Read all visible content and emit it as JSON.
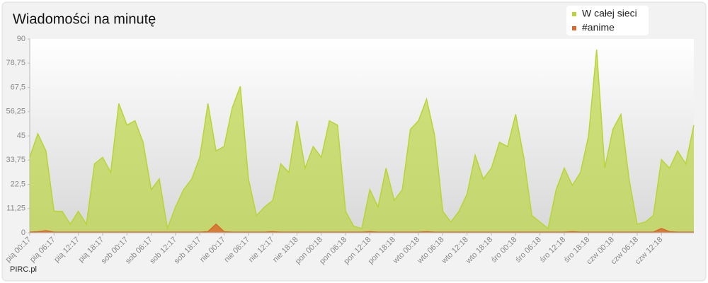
{
  "chart_data": {
    "type": "area",
    "title": "Wiadomości na minutę",
    "credit": "PIRC.pl",
    "legend": "top-right",
    "grid": false,
    "categories": [
      "pią 00:17",
      null,
      null,
      "pią 06:17",
      null,
      null,
      "pią 12:17",
      null,
      null,
      "pią 18:17",
      null,
      null,
      "sob 00:17",
      null,
      null,
      "sob 06:17",
      null,
      null,
      "sob 12:17",
      null,
      null,
      "sob 18:17",
      null,
      null,
      "nie 00:17",
      null,
      null,
      "nie 06:17",
      null,
      null,
      "nie 12:17",
      null,
      null,
      "nie 18:18",
      null,
      null,
      "pon 00:18",
      null,
      null,
      "pon 06:18",
      null,
      null,
      "pon 12:18",
      null,
      null,
      "pon 18:18",
      null,
      null,
      "wto 00:18",
      null,
      null,
      "wto 06:18",
      null,
      null,
      "wto 12:18",
      null,
      null,
      "wto 18:18",
      null,
      null,
      "śro 00:18",
      null,
      null,
      "śro 06:18",
      null,
      null,
      "śro 12:18",
      null,
      null,
      "śro 18:18",
      null,
      null,
      "czw 00:18",
      null,
      null,
      "czw 06:18",
      null,
      null,
      "czw 12:18",
      null,
      null,
      null,
      null
    ],
    "series": [
      {
        "name": "W całej sieci",
        "color": "#b8d435",
        "values": [
          35,
          46,
          38,
          10,
          10,
          4,
          10,
          4,
          32,
          35,
          28,
          60,
          50,
          52,
          42,
          20,
          25,
          2,
          12,
          20,
          25,
          35,
          60,
          38,
          40,
          58,
          68,
          25,
          8,
          12,
          15,
          32,
          28,
          52,
          30,
          40,
          35,
          52,
          50,
          10,
          3,
          2,
          20,
          12,
          30,
          15,
          20,
          48,
          52,
          62,
          45,
          10,
          5,
          10,
          18,
          36,
          25,
          30,
          42,
          40,
          55,
          35,
          8,
          5,
          2,
          20,
          30,
          22,
          28,
          45,
          85,
          30,
          48,
          55,
          25,
          4,
          5,
          8,
          34,
          30,
          38,
          32,
          50
        ]
      },
      {
        "name": "#anime",
        "color": "#d9672c",
        "values": [
          0.3,
          0.5,
          1,
          0.3,
          0.3,
          0.3,
          0.3,
          0.3,
          0.3,
          0.3,
          0.3,
          0.3,
          0.3,
          0.3,
          0.3,
          0.3,
          0.3,
          0.3,
          0.3,
          0.3,
          0.3,
          0.3,
          0.5,
          4,
          0.5,
          0.3,
          0.3,
          0.3,
          0.3,
          0.3,
          0.5,
          0.3,
          0.3,
          0.3,
          0.3,
          0.3,
          0.3,
          0.3,
          0.3,
          0.3,
          0.3,
          0.3,
          0.5,
          0.3,
          0.3,
          0.3,
          0.3,
          0.3,
          0.3,
          0.5,
          0.3,
          0.3,
          0.3,
          0.3,
          0.3,
          0.3,
          0.3,
          0.3,
          0.3,
          0.3,
          0.3,
          0.3,
          0.3,
          0.3,
          0.3,
          0.3,
          0.3,
          0.5,
          0.3,
          0.3,
          0.3,
          0.3,
          0.3,
          0.3,
          0.3,
          0.3,
          0.3,
          0.3,
          2,
          0.5,
          0.3,
          0.3,
          0.3
        ]
      }
    ],
    "ylim": [
      0,
      90
    ],
    "yticks": [
      0,
      {
        "value": 11.25,
        "label": "11,25"
      },
      {
        "value": 22.5,
        "label": "22,5"
      },
      {
        "value": 33.75,
        "label": "33,75"
      },
      45,
      {
        "value": 56.25,
        "label": "56,25"
      },
      {
        "value": 67.5,
        "label": "67,5"
      },
      {
        "value": 78.75,
        "label": "78,75"
      },
      90
    ]
  }
}
